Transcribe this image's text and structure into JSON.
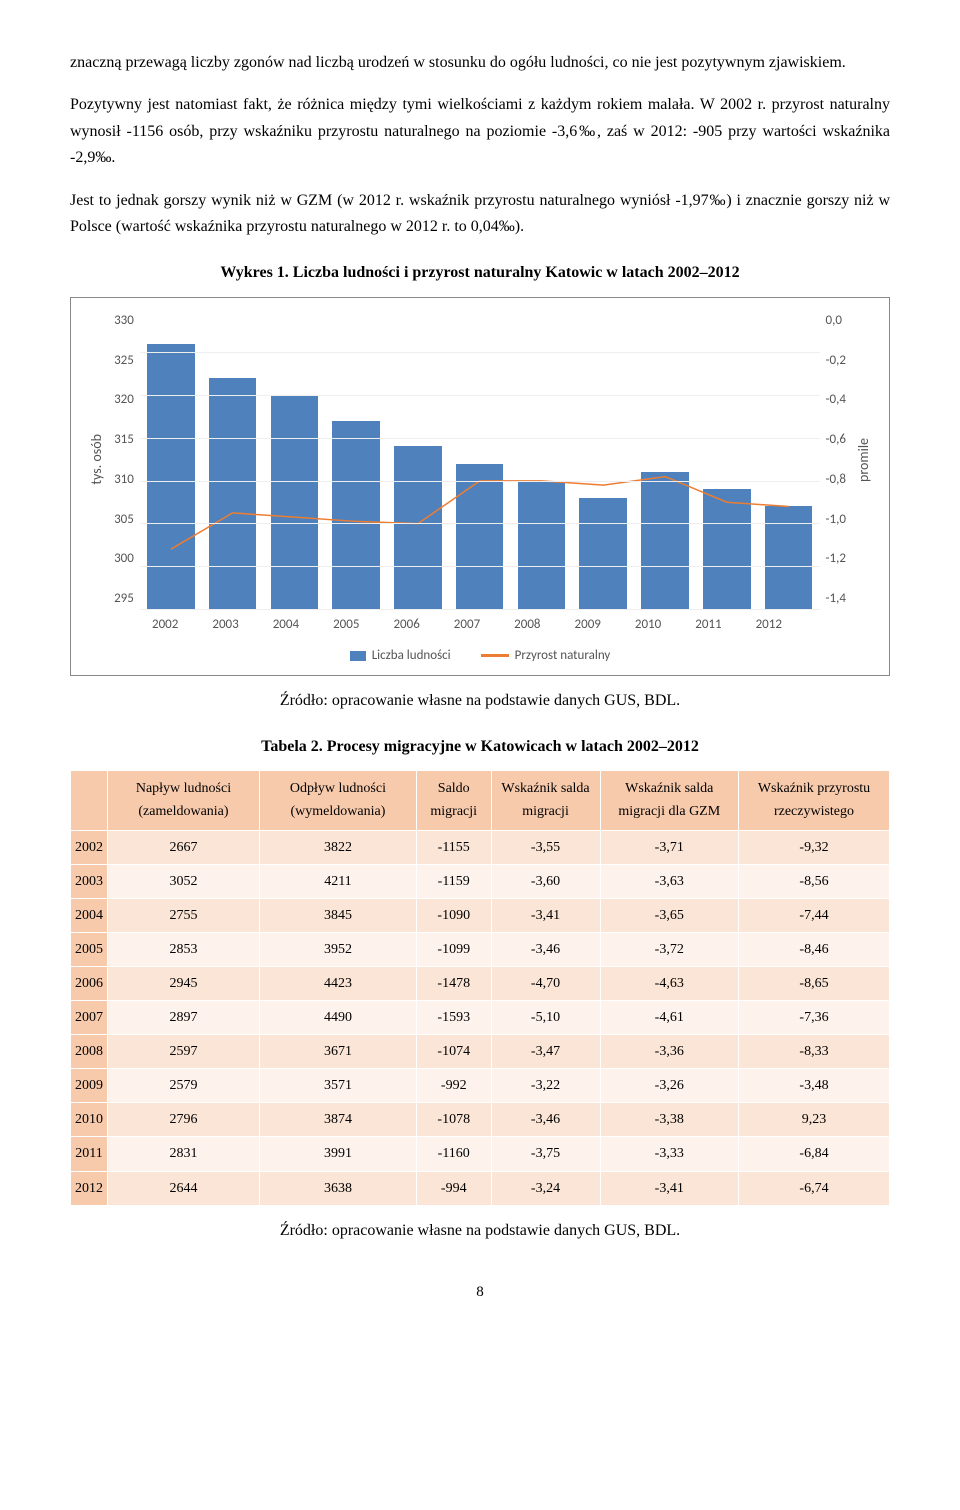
{
  "paragraphs": {
    "p1": "znaczną przewagą liczby zgonów nad liczbą urodzeń w stosunku do ogółu ludności, co nie jest pozytywnym zjawiskiem.",
    "p2": "Pozytywny jest natomiast fakt, że różnica między tymi wielkościami z każdym rokiem malała. W 2002 r. przyrost naturalny wynosił -1156 osób, przy wskaźniku przyrostu naturalnego na poziomie -3,6‰, zaś w 2012: -905 przy wartości wskaźnika -2,9‰.",
    "p3": "Jest to jednak gorszy wynik niż w GZM (w 2012 r. wskaźnik przyrostu naturalnego wyniósł -1,97‰) i znacznie gorszy niż w Polsce (wartość wskaźnika przyrostu naturalnego w 2012 r. to 0,04‰)."
  },
  "chart": {
    "caption": "Wykres 1. Liczba ludności i przyrost naturalny Katowic w latach 2002–2012",
    "y_left_label": "tys. osób",
    "y_right_label": "promile",
    "y_left_ticks": [
      "330",
      "325",
      "320",
      "315",
      "310",
      "305",
      "300",
      "295"
    ],
    "y_left_min": 295,
    "y_left_max": 330,
    "y_right_ticks": [
      "0,0",
      "-0,2",
      "-0,4",
      "-0,6",
      "-0,8",
      "-1,0",
      "-1,2",
      "-1,4"
    ],
    "y_right_min": -1.4,
    "y_right_max": 0.0,
    "x_labels": [
      "2002",
      "2003",
      "2004",
      "2005",
      "2006",
      "2007",
      "2008",
      "2009",
      "2010",
      "2011",
      "2012"
    ],
    "bars": [
      326,
      322,
      320,
      317,
      314,
      312,
      310,
      308,
      311,
      309,
      307
    ],
    "line": [
      -1.12,
      -0.95,
      -0.97,
      -0.99,
      -1.0,
      -0.8,
      -0.8,
      -0.82,
      -0.78,
      -0.9,
      -0.92
    ],
    "bar_color": "#4f81bd",
    "line_color": "#ed7d31",
    "grid_color": "#eeeeee",
    "legend_bar": "Liczba ludności",
    "legend_line": "Przyrost naturalny",
    "source": "Źródło: opracowanie własne na podstawie danych GUS, BDL."
  },
  "table": {
    "caption": "Tabela 2. Procesy migracyjne w Katowicach w latach 2002–2012",
    "headers": [
      "",
      "Napływ ludności (zameldowania)",
      "Odpływ ludności (wymeldowania)",
      "Saldo migracji",
      "Wskaźnik salda migracji",
      "Wskaźnik salda migracji dla GZM",
      "Wskaźnik przyrostu rzeczywistego"
    ],
    "rows": [
      [
        "2002",
        "2667",
        "3822",
        "-1155",
        "-3,55",
        "-3,71",
        "-9,32"
      ],
      [
        "2003",
        "3052",
        "4211",
        "-1159",
        "-3,60",
        "-3,63",
        "-8,56"
      ],
      [
        "2004",
        "2755",
        "3845",
        "-1090",
        "-3,41",
        "-3,65",
        "-7,44"
      ],
      [
        "2005",
        "2853",
        "3952",
        "-1099",
        "-3,46",
        "-3,72",
        "-8,46"
      ],
      [
        "2006",
        "2945",
        "4423",
        "-1478",
        "-4,70",
        "-4,63",
        "-8,65"
      ],
      [
        "2007",
        "2897",
        "4490",
        "-1593",
        "-5,10",
        "-4,61",
        "-7,36"
      ],
      [
        "2008",
        "2597",
        "3671",
        "-1074",
        "-3,47",
        "-3,36",
        "-8,33"
      ],
      [
        "2009",
        "2579",
        "3571",
        "-992",
        "-3,22",
        "-3,26",
        "-3,48"
      ],
      [
        "2010",
        "2796",
        "3874",
        "-1078",
        "-3,46",
        "-3,38",
        "9,23"
      ],
      [
        "2011",
        "2831",
        "3991",
        "-1160",
        "-3,75",
        "-3,33",
        "-6,84"
      ],
      [
        "2012",
        "2644",
        "3638",
        "-994",
        "-3,24",
        "-3,41",
        "-6,74"
      ]
    ],
    "source": "Źródło: opracowanie własne na podstawie danych GUS, BDL.",
    "header_bg": "#f7caac",
    "row_bg_even": "#fbe5d6",
    "row_bg_odd": "#fef2ec"
  },
  "page_number": "8"
}
